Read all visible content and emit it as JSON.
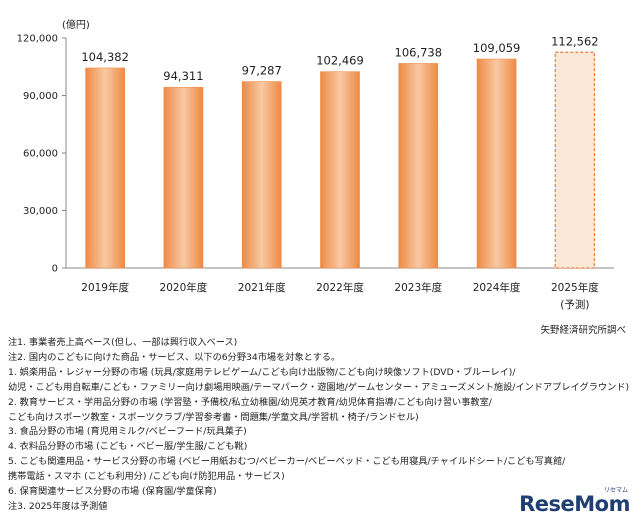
{
  "chart_data": {
    "type": "bar",
    "unit": "(億円)",
    "categories": [
      "2019年度",
      "2020年度",
      "2021年度",
      "2022年度",
      "2023年度",
      "2024年度",
      "2025年度"
    ],
    "category_sub": [
      "",
      "",
      "",
      "",
      "",
      "",
      "(予測)"
    ],
    "values": [
      104382,
      94311,
      97287,
      102469,
      106738,
      109059,
      112562
    ],
    "value_labels": [
      "104,382",
      "94,311",
      "97,287",
      "102,469",
      "106,738",
      "109,059",
      "112,562"
    ],
    "forecast_flags": [
      false,
      false,
      false,
      false,
      false,
      false,
      true
    ],
    "ylim": [
      0,
      120000
    ],
    "yticks": [
      0,
      30000,
      60000,
      90000,
      120000
    ],
    "ytick_labels": [
      "0",
      "30,000",
      "60,000",
      "90,000",
      "120,000"
    ],
    "grid": false,
    "colors": {
      "bar_top": "#f7c59c",
      "bar_mid": "#f4a66a",
      "bar_edge": "#ee8a44",
      "forecast_stroke": "#e67e3a",
      "forecast_fill": "#fde7d6"
    }
  },
  "source": "矢野経済研究所調べ",
  "notes": [
    "注1.  事業者売上高ベース(但し、一部は興行収入ベース)",
    "注2.  国内のこどもに向けた商品・サービス、以下の6分野34市場を対象とする。",
    "1.  娯楽用品・レジャー分野の市場 (玩具/家庭用テレビゲーム/こども向け出版物/こども向け映像ソフト(DVD・ブルーレイ)/",
    "幼児・こども用自転車/こども・ファミリー向け劇場用映画/テーマパーク・遊園地/ゲームセンター・アミューズメント施設/インドアプレイグラウンド)",
    "2.  教育サービス・学用品分野の市場 (学習塾・予備校/私立幼稚園/幼児英才教育/幼児体育指導/こども向け習い事教室/",
    "こども向けスポーツ教室・スポーツクラブ/学習参考書・問題集/学童文具/学習机・椅子/ランドセル)",
    "3.  食品分野の市場 (育児用ミルク/ベビーフード/玩具菓子)",
    "4.  衣料品分野の市場 (こども・ベビー服/学生服/こども靴)",
    "5.  こども関連用品・サービス分野の市場 (ベビー用紙おむつ/ベビーカー/ベビーベッド・こども用寝具/チャイルドシート/こども写真館/",
    "携帯電話・スマホ (こども利用分) /こども向け防犯用品・サービス)",
    "6.  保育関連サービス分野の市場 (保育園/学童保育)",
    "注3.  2025年度は予測値"
  ],
  "logo": {
    "text": "ReseMom",
    "kana": "リセマム"
  }
}
